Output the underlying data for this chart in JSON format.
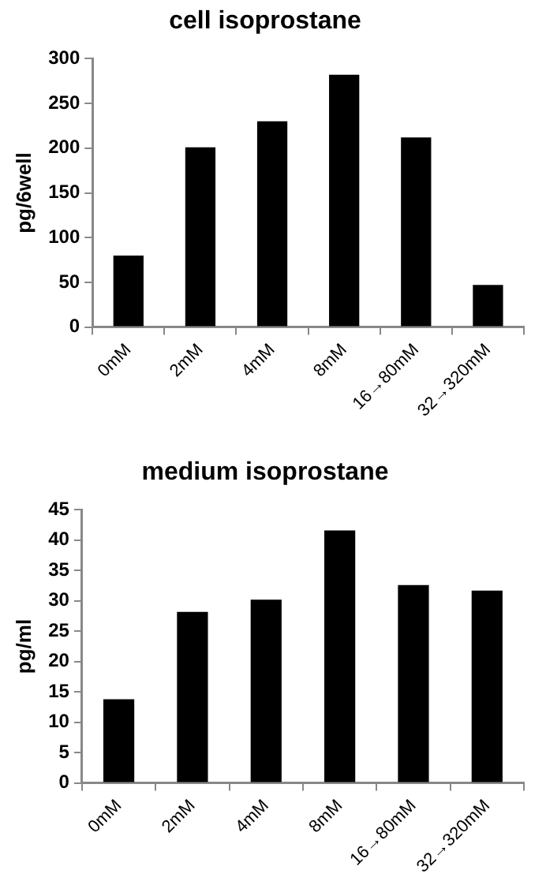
{
  "chart_data": [
    {
      "type": "bar",
      "title": "cell isoprostane",
      "ylabel": "pg/6well",
      "categories": [
        "0mM",
        "2mM",
        "4mM",
        "8mM",
        "16→80mM",
        "32→320mM"
      ],
      "values": [
        80,
        201,
        230,
        282,
        212,
        47
      ],
      "color": "#000000",
      "ylim": [
        0,
        300
      ],
      "yticks": [
        0,
        50,
        100,
        150,
        200,
        250,
        300
      ],
      "grid": false,
      "legend": false
    },
    {
      "type": "bar",
      "title": "medium isoprostane",
      "ylabel": "pg/ml",
      "categories": [
        "0mM",
        "2mM",
        "4mM",
        "8mM",
        "16→80mM",
        "32→320mM"
      ],
      "values": [
        13.8,
        28.2,
        30.2,
        41.6,
        32.6,
        31.7
      ],
      "color": "#000000",
      "ylim": [
        0,
        45
      ],
      "yticks": [
        0,
        5,
        10,
        15,
        20,
        25,
        30,
        35,
        40,
        45
      ],
      "grid": false,
      "legend": false
    }
  ]
}
